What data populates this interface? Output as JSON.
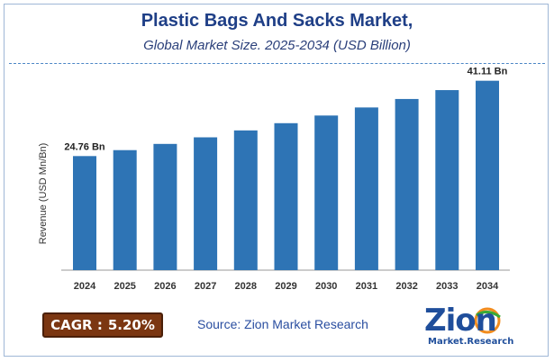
{
  "chart_data": {
    "type": "bar",
    "title": "Plastic Bags And Sacks Market,",
    "subtitle": "Global Market Size. 2025-2034 (USD Billion)",
    "ylabel": "Revenue (USD Mn/Bn)",
    "xlabel": "",
    "categories": [
      "2024",
      "2025",
      "2026",
      "2027",
      "2028",
      "2029",
      "2030",
      "2031",
      "2032",
      "2033",
      "2034"
    ],
    "values": [
      24.76,
      26.05,
      27.4,
      28.83,
      30.33,
      31.9,
      33.56,
      35.31,
      37.15,
      39.08,
      41.11
    ],
    "ylim": [
      0,
      43
    ],
    "data_labels": [
      {
        "index": 0,
        "text": "24.76 Bn"
      },
      {
        "index": 10,
        "text": "41.11 Bn"
      }
    ],
    "bar_color": "#2e74b5",
    "grid": false
  },
  "footer": {
    "cagr_label": "CAGR :",
    "cagr_value": "5.20%",
    "source": "Source: Zion Market Research"
  },
  "logo": {
    "main": "Zion",
    "sub": "Market.Research"
  },
  "colors": {
    "title": "#1f3f87",
    "accent_dash": "#4c86c6",
    "cagr_bg": "#7b3611",
    "source_text": "#2a4ea0"
  }
}
